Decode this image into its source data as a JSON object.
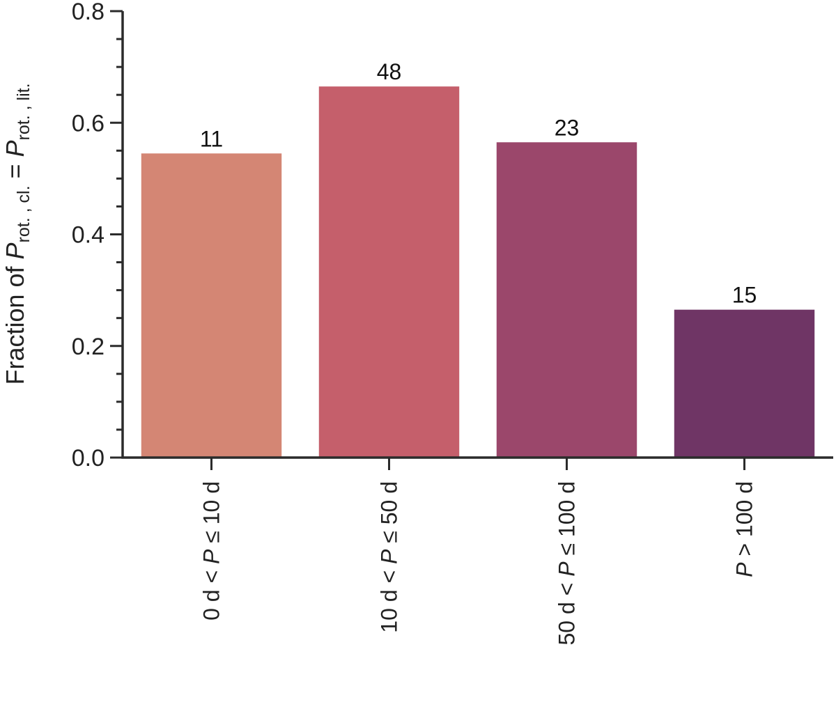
{
  "chart_data": {
    "type": "bar",
    "title": "",
    "xlabel": "",
    "ylabel": {
      "prefix": "Fraction of ",
      "symbol_1": "P",
      "subscript_1": "rot. , cl.",
      "equals": " = ",
      "symbol_2": "P",
      "subscript_2": "rot. , lit."
    },
    "ylim": [
      0,
      0.8
    ],
    "yticks": [
      0.0,
      0.2,
      0.4,
      0.6,
      0.8
    ],
    "ytick_labels": [
      "0.0",
      "0.2",
      "0.4",
      "0.6",
      "0.8"
    ],
    "y_minor_step": 0.05,
    "categories": [
      {
        "pre": "0 d < ",
        "sym": "P",
        "post": " ≤  10 d"
      },
      {
        "pre": "10 d < ",
        "sym": "P",
        "post": " ≤  50 d"
      },
      {
        "pre": "50 d < ",
        "sym": "P",
        "post": " ≤  100 d"
      },
      {
        "pre": "",
        "sym": "P",
        "post": " > 100 d"
      }
    ],
    "values": [
      0.545,
      0.665,
      0.565,
      0.265
    ],
    "bar_labels": [
      "11",
      "48",
      "23",
      "15"
    ],
    "colors": [
      "#d48674",
      "#c55f6b",
      "#9b476b",
      "#6f3565"
    ],
    "grid": false,
    "legend": "none"
  }
}
